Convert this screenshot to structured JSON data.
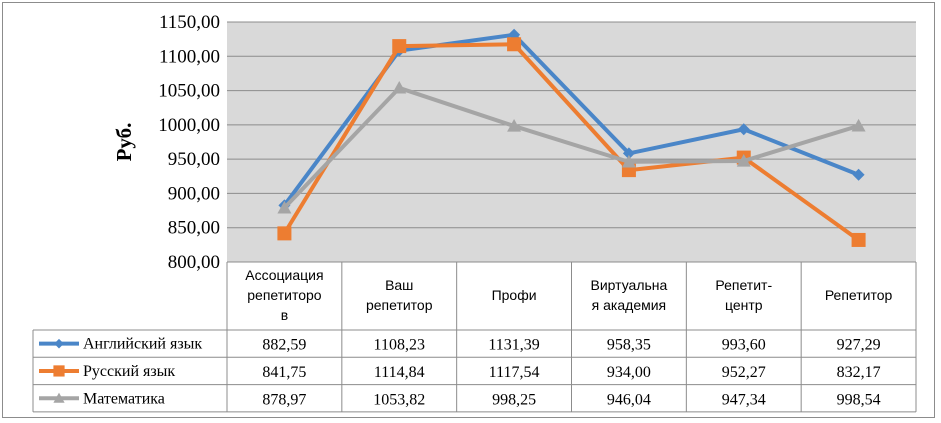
{
  "chart_data": {
    "type": "line",
    "ylabel": "Руб.",
    "ylim": [
      800,
      1150
    ],
    "yticks": [
      "1150,00",
      "1100,00",
      "1050,00",
      "1000,00",
      "950,00",
      "900,00",
      "850,00",
      "800,00"
    ],
    "ytick_values": [
      1150,
      1100,
      1050,
      1000,
      950,
      900,
      850,
      800
    ],
    "grid": true,
    "legend": "table-left",
    "categories": [
      [
        "Ассоциация",
        "репетиторо",
        "в"
      ],
      [
        "Ваш",
        "репетитор"
      ],
      [
        "Профи"
      ],
      [
        "Виртуальна",
        "я академия"
      ],
      [
        "Репетит-",
        "центр"
      ],
      [
        "Репетитор"
      ]
    ],
    "series": [
      {
        "name": "Английский язык",
        "color": "#4a86c8",
        "marker": "diamond",
        "values": [
          882.59,
          1108.23,
          1131.39,
          958.35,
          993.6,
          927.29
        ],
        "labels": [
          "882,59",
          "1108,23",
          "1131,39",
          "958,35",
          "993,60",
          "927,29"
        ]
      },
      {
        "name": "Русский язык",
        "color": "#ed7d31",
        "marker": "square",
        "values": [
          841.75,
          1114.84,
          1117.54,
          934.0,
          952.27,
          832.17
        ],
        "labels": [
          "841,75",
          "1114,84",
          "1117,54",
          "934,00",
          "952,27",
          "832,17"
        ]
      },
      {
        "name": "Математика",
        "color": "#a5a5a5",
        "marker": "triangle",
        "values": [
          878.97,
          1053.82,
          998.25,
          946.04,
          947.34,
          998.54
        ],
        "labels": [
          "878,97",
          "1053,82",
          "998,25",
          "946,04",
          "947,34",
          "998,54"
        ]
      }
    ]
  }
}
